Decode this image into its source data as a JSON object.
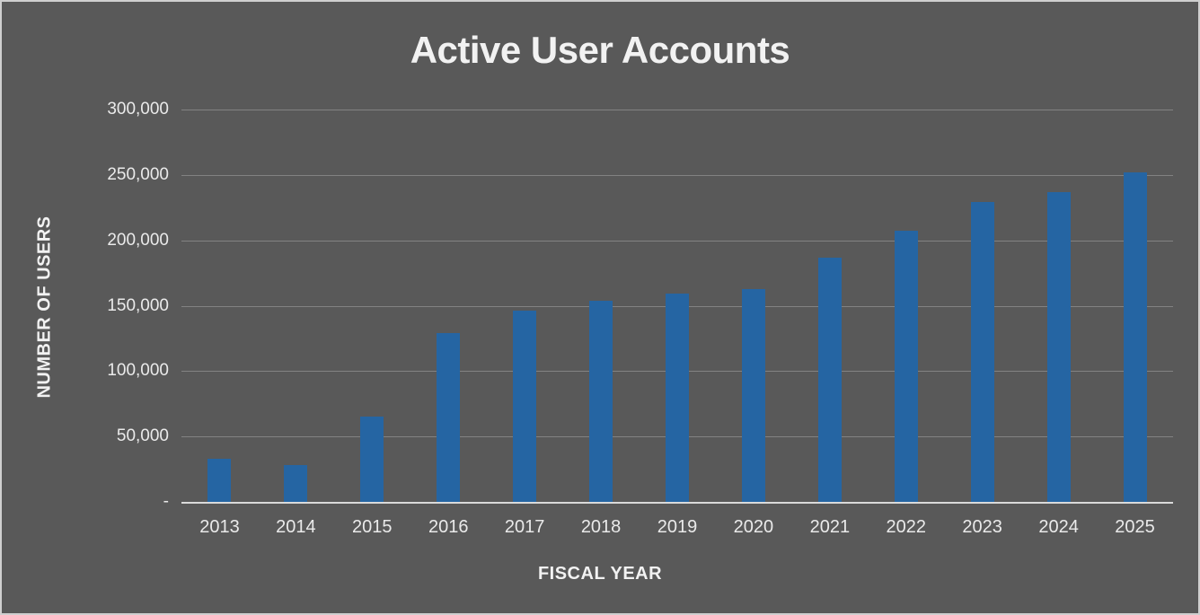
{
  "chart": {
    "title": "Active User Accounts",
    "x_axis_title": "FISCAL YEAR",
    "y_axis_title": "NUMBER OF USERS"
  },
  "chart_data": {
    "type": "bar",
    "title": "Active User Accounts",
    "xlabel": "FISCAL YEAR",
    "ylabel": "NUMBER OF USERS",
    "categories": [
      "2013",
      "2014",
      "2015",
      "2016",
      "2017",
      "2018",
      "2019",
      "2020",
      "2021",
      "2022",
      "2023",
      "2024",
      "2025"
    ],
    "values": [
      33000,
      28000,
      65000,
      129000,
      146000,
      154000,
      159000,
      163000,
      187000,
      207000,
      229000,
      237000,
      252000
    ],
    "ylim": [
      0,
      300000
    ],
    "y_tick_interval": 50000,
    "y_tick_labels": [
      "300,000",
      "250,000",
      "200,000",
      "150,000",
      "100,000",
      "50,000",
      "-"
    ],
    "grid": true,
    "legend_position": "none",
    "colors": {
      "bar": "#2565a3",
      "background": "#595959",
      "gridline": "#767676",
      "axis_line": "#dadada",
      "text": "#eaeaea",
      "title_text": "#f2f2f2"
    }
  }
}
